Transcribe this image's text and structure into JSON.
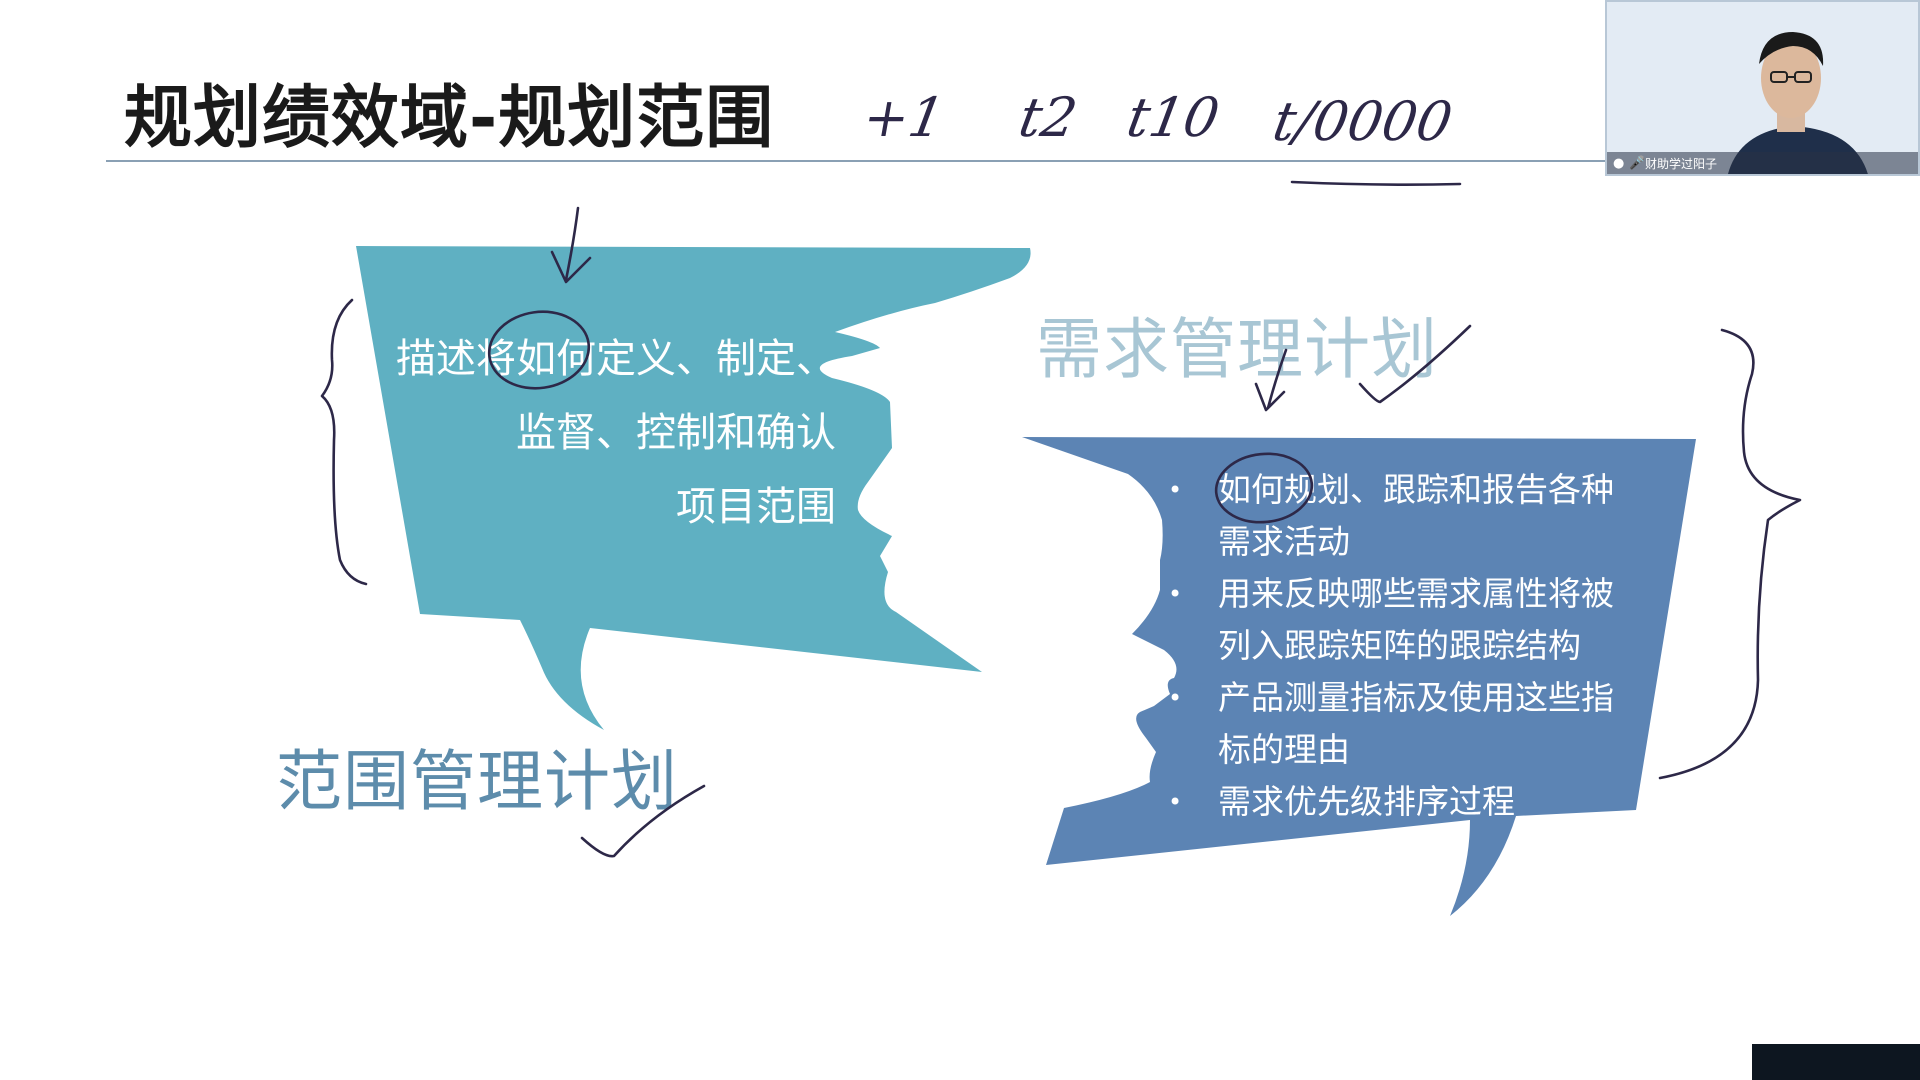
{
  "slide": {
    "title": "规划绩效域-规划范围"
  },
  "ink": {
    "note_t1": "+1",
    "note_t2": "t2",
    "note_t10": "t10",
    "note_t10000": "t/0000"
  },
  "scope_bubble": {
    "lines": [
      "描述将如何定义、制定、",
      "监督、控制和确认",
      "项目范围"
    ],
    "color": "#5fb0c2"
  },
  "scope_label": "范围管理计划",
  "requirements_label": "需求管理计划",
  "requirements_bubble": {
    "color": "#5c84b4",
    "items": [
      "如何规划、跟踪和报告各种需求活动",
      "用来反映哪些需求属性将被列入跟踪矩阵的跟踪结构",
      "产品测量指标及使用这些指标的理由",
      "需求优先级排序过程"
    ]
  },
  "video": {
    "participant_name": "财助学过阳子",
    "icons": [
      "user-icon",
      "mic-icon"
    ]
  },
  "colors": {
    "title_line": "#8aa0b4",
    "ink": "#2d2848"
  }
}
